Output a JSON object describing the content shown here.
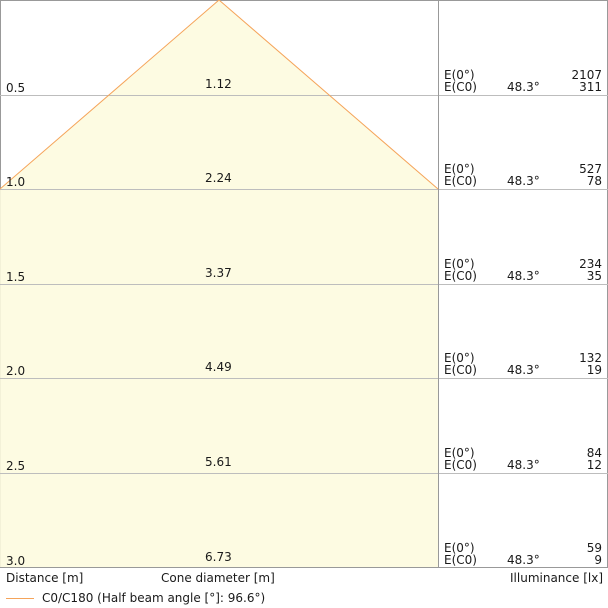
{
  "chart_data": {
    "type": "area",
    "xlabel": "Distance [m]",
    "center_label": "Cone diameter [m]",
    "ylabel": "Illuminance [lx]",
    "legend": "C0/C180 (Half beam angle [°]: 96.6°)",
    "half_beam_angle_deg": 96.6,
    "colors": {
      "fill": "#fdfbdf",
      "stroke": "#f5a45a",
      "grid": "#bdbdbd",
      "border": "#999999"
    },
    "rows": [
      {
        "distance": "0.5",
        "diameter": "1.12",
        "e0_label": "E(0°)",
        "ec0_label": "E(C0)",
        "angle": "48.3°",
        "e0": "2107",
        "ec0": "311"
      },
      {
        "distance": "1.0",
        "diameter": "2.24",
        "e0_label": "E(0°)",
        "ec0_label": "E(C0)",
        "angle": "48.3°",
        "e0": "527",
        "ec0": "78"
      },
      {
        "distance": "1.5",
        "diameter": "3.37",
        "e0_label": "E(0°)",
        "ec0_label": "E(C0)",
        "angle": "48.3°",
        "e0": "234",
        "ec0": "35"
      },
      {
        "distance": "2.0",
        "diameter": "4.49",
        "e0_label": "E(0°)",
        "ec0_label": "E(C0)",
        "angle": "48.3°",
        "e0": "132",
        "ec0": "19"
      },
      {
        "distance": "2.5",
        "diameter": "5.61",
        "e0_label": "E(0°)",
        "ec0_label": "E(C0)",
        "angle": "48.3°",
        "e0": "84",
        "ec0": "12"
      },
      {
        "distance": "3.0",
        "diameter": "6.73",
        "e0_label": "E(0°)",
        "ec0_label": "E(C0)",
        "angle": "48.3°",
        "e0": "59",
        "ec0": "9"
      }
    ]
  }
}
